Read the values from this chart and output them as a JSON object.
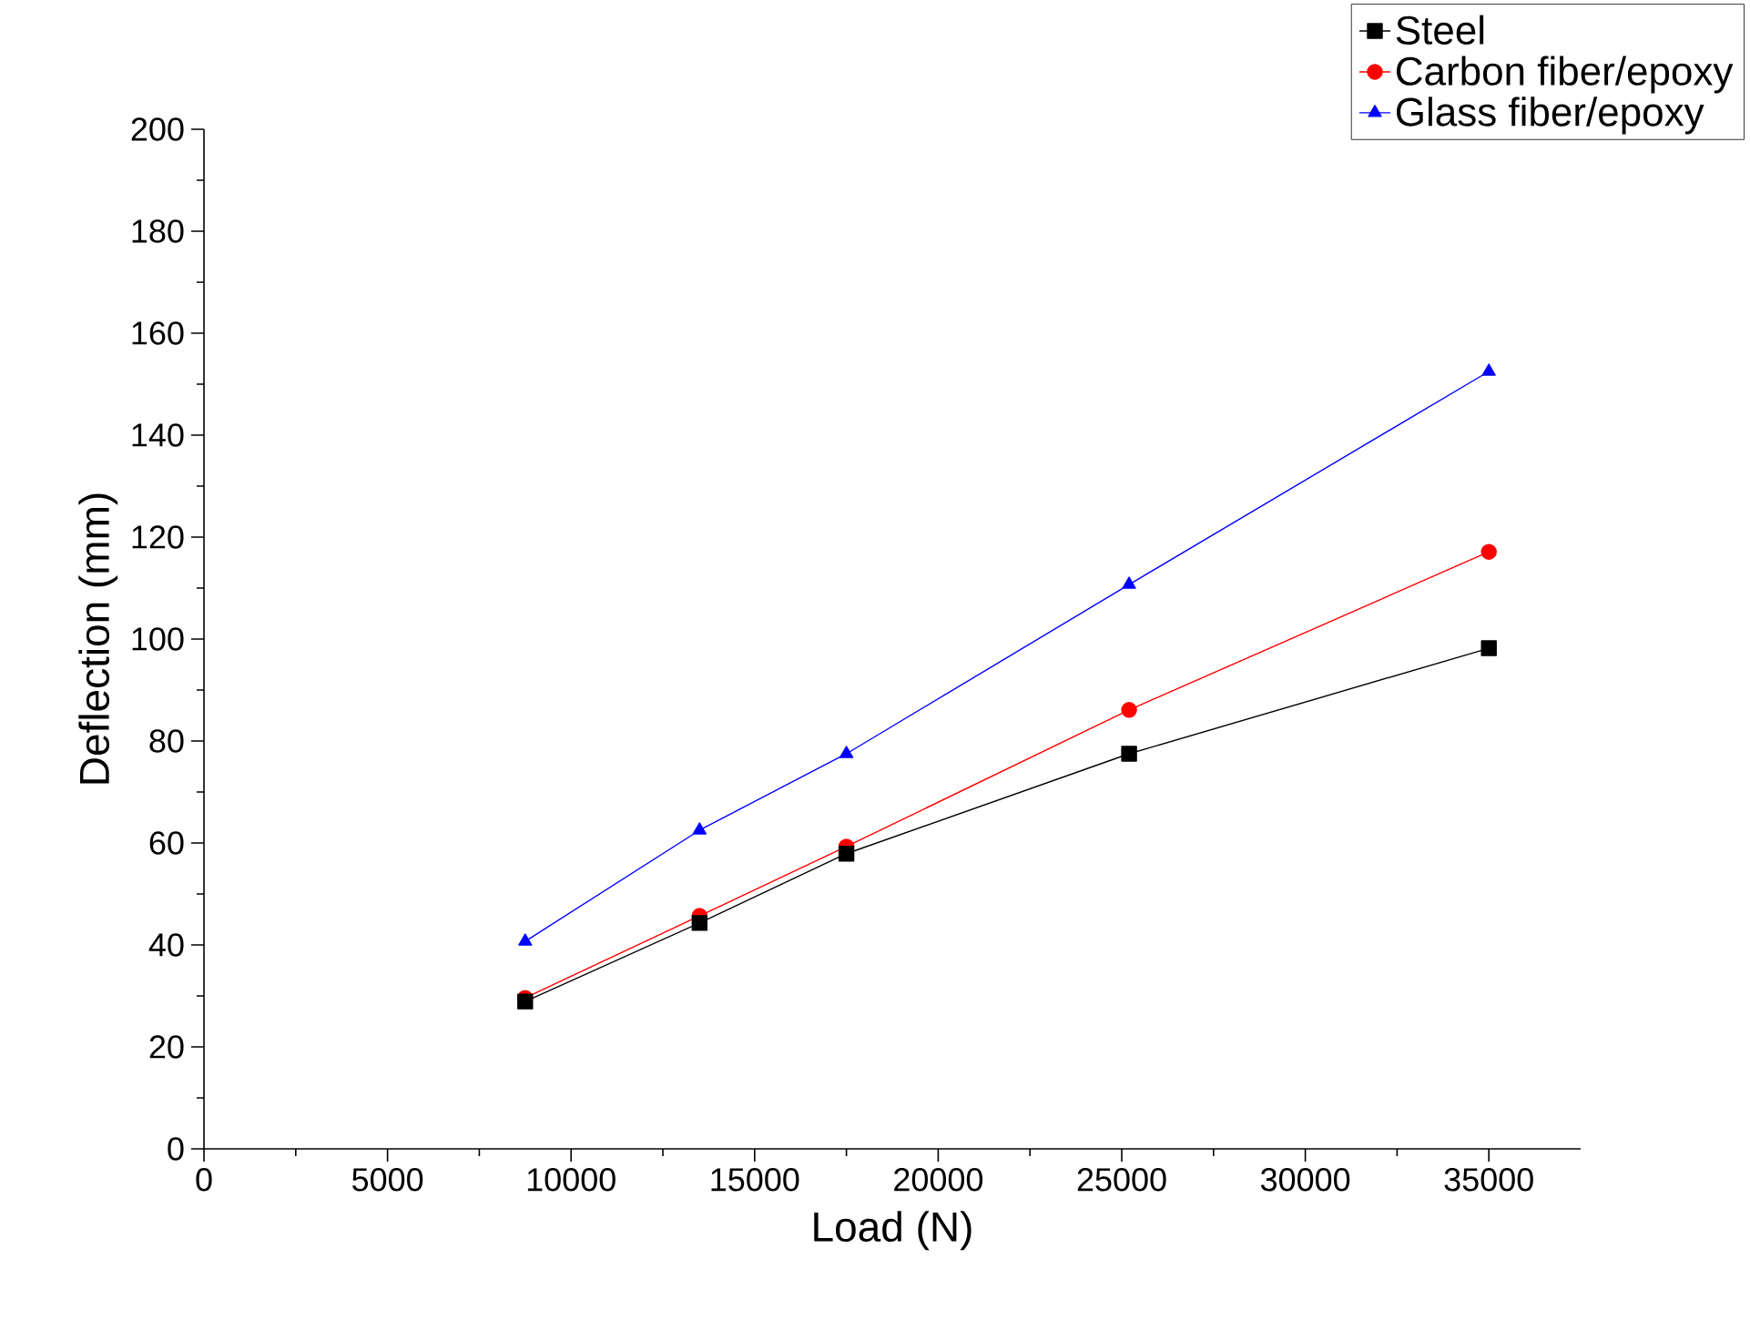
{
  "chart_data": {
    "type": "line",
    "xlabel": "Load (N)",
    "ylabel": "Deflection (mm)",
    "x": [
      8750,
      13500,
      17500,
      25200,
      35000
    ],
    "series": [
      {
        "name": "Steel",
        "color": "#000000",
        "marker": "square",
        "values": [
          28.9,
          44.3,
          57.9,
          77.5,
          98.2
        ]
      },
      {
        "name": "Carbon fiber/epoxy",
        "color": "#ff0000",
        "marker": "circle",
        "values": [
          29.6,
          45.7,
          59.3,
          86.1,
          117.1
        ]
      },
      {
        "name": "Glass fiber/epoxy",
        "color": "#0000ff",
        "marker": "triangle",
        "values": [
          40.7,
          62.5,
          77.5,
          110.7,
          152.5
        ]
      }
    ],
    "xlim": [
      0,
      37500
    ],
    "ylim": [
      0,
      200
    ],
    "xticks": [
      0,
      5000,
      10000,
      15000,
      20000,
      25000,
      30000,
      35000
    ],
    "yticks": [
      0,
      20,
      40,
      60,
      80,
      100,
      120,
      140,
      160,
      180,
      200
    ],
    "grid": false,
    "legend": "top right",
    "line_style": "solid"
  }
}
